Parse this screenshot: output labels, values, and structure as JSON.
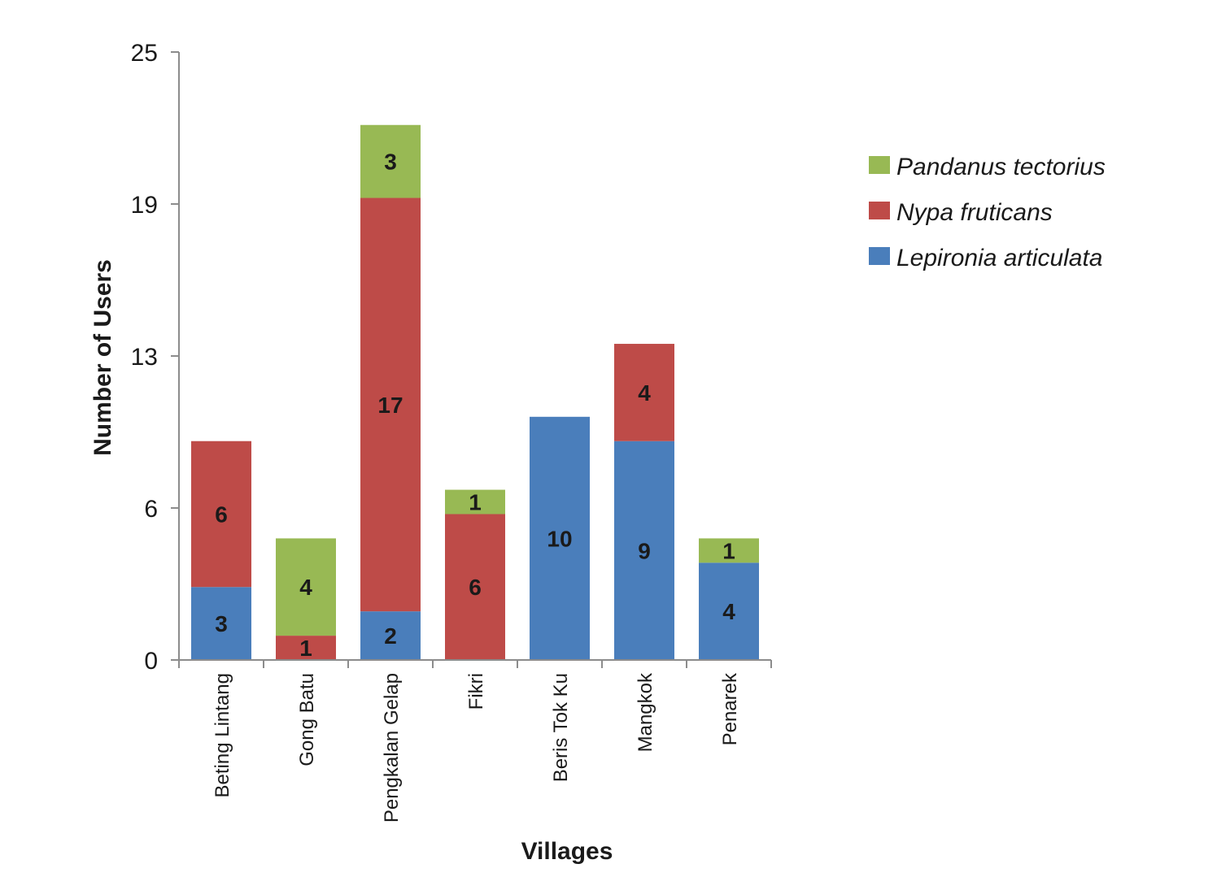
{
  "chart_data": {
    "type": "bar",
    "stacked": true,
    "title": "",
    "xlabel": "Villages",
    "ylabel": "Number of Users",
    "ylim": [
      0,
      25
    ],
    "yticks": [
      "0",
      "6",
      "13",
      "19",
      "25"
    ],
    "ytick_values": [
      0,
      6.25,
      12.5,
      18.75,
      25
    ],
    "grid": false,
    "legend_position": "top-right",
    "categories": [
      "Beting Lintang",
      "Gong Batu",
      "Pengkalan Gelap",
      "Fikri",
      "Beris Tok Ku",
      "Mangkok",
      "Penarek"
    ],
    "series": [
      {
        "name": "Lepironia articulata",
        "color": "#4a7ebb",
        "values": [
          3,
          0,
          2,
          0,
          10,
          9,
          4
        ]
      },
      {
        "name": "Nypa fruticans",
        "color": "#be4b48",
        "values": [
          6,
          1,
          17,
          6,
          0,
          4,
          0
        ]
      },
      {
        "name": "Pandanus tectorius",
        "color": "#98b954",
        "values": [
          0,
          4,
          3,
          1,
          0,
          0,
          1
        ]
      }
    ],
    "legend_order": [
      "Pandanus tectorius",
      "Nypa fruticans",
      "Lepironia articulata"
    ]
  }
}
